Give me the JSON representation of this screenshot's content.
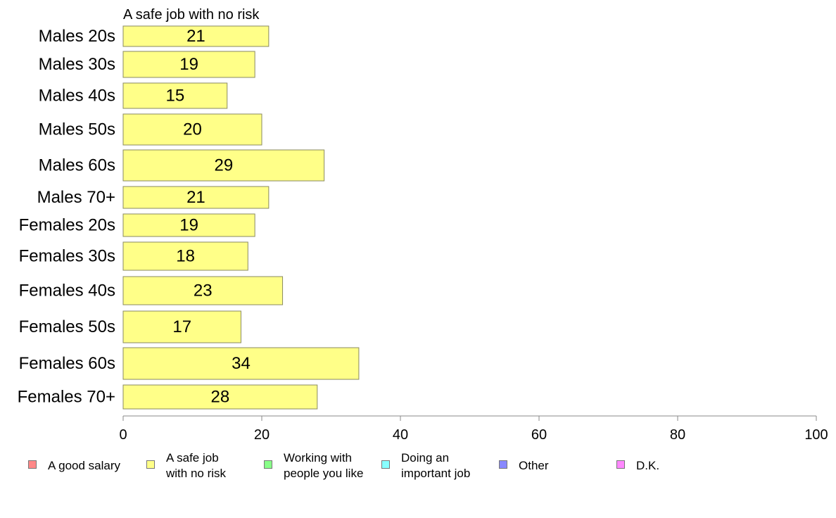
{
  "chart_data": {
    "type": "bar",
    "orientation": "horizontal",
    "panel_title": "A safe job with no risk",
    "categories": [
      "Males 20s",
      "Males 30s",
      "Males 40s",
      "Males 50s",
      "Males 60s",
      "Males 70+",
      "Females 20s",
      "Females 30s",
      "Females 40s",
      "Females 50s",
      "Females 60s",
      "Females 70+"
    ],
    "values": [
      21,
      19,
      15,
      20,
      29,
      21,
      19,
      18,
      23,
      17,
      34,
      28
    ],
    "value_labels": [
      "21",
      "19",
      "15",
      "20",
      "29",
      "21",
      "19",
      "18",
      "23",
      "17",
      "34",
      "28"
    ],
    "xlim": [
      0,
      100
    ],
    "xticks": [
      0,
      20,
      40,
      60,
      80,
      100
    ],
    "xtick_labels": [
      "0",
      "20",
      "40",
      "60",
      "80",
      "100"
    ],
    "bar_color": "#ffff88",
    "grid": false,
    "legend_position": "bottom",
    "legend": [
      {
        "label": "A good salary",
        "color": "#ff8888"
      },
      {
        "label": "A safe job\nwith no risk",
        "color": "#ffff88"
      },
      {
        "label": "Working with\npeople you like",
        "color": "#88ff88"
      },
      {
        "label": "Doing an\nimportant job",
        "color": "#88ffff"
      },
      {
        "label": "Other",
        "color": "#8888ff"
      },
      {
        "label": "D.K.",
        "color": "#ff88ff"
      }
    ]
  }
}
